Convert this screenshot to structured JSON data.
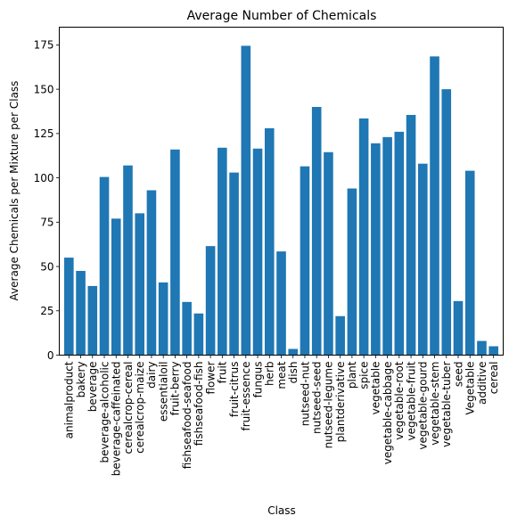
{
  "chart_data": {
    "type": "bar",
    "title": "Average Number of Chemicals",
    "xlabel": "Class",
    "ylabel": "Average Chemicals per Mixture per Class",
    "ylim": [
      0,
      185
    ],
    "yticks": [
      "0",
      "25",
      "50",
      "75",
      "100",
      "125",
      "150",
      "175"
    ],
    "grid": false,
    "bar_color": "#1f77b4",
    "categories": [
      "animalproduct",
      "bakery",
      "beverage",
      "beverage-alcoholic",
      "beverage-caffeinated",
      "cerealcrop-cereal",
      "cerealcrop-maize",
      "dairy",
      "essentialoil",
      "fruit-berry",
      "fishseafood-seafood",
      "fishseafood-fish",
      "flower",
      "fruit",
      "fruit-citrus",
      "fruit-essence",
      "fungus",
      "herb",
      "meat",
      "dish",
      "nutseed-nut",
      "nutseed-seed",
      "nutseed-legume",
      "plantderivative",
      "plant",
      "spice",
      "vegetable",
      "vegetable-cabbage",
      "vegetable-root",
      "vegetable-fruit",
      "vegetable-gourd",
      "vegetable-stem",
      "vegetable-tuber",
      "seed",
      "Vegetable",
      "additive",
      "cereal"
    ],
    "values": [
      55,
      47.5,
      39,
      100.5,
      77,
      107,
      80,
      93,
      41,
      116,
      30,
      23.5,
      61.5,
      117,
      103,
      174.5,
      116.5,
      128,
      58.5,
      3.5,
      106.5,
      140,
      114.5,
      22,
      94,
      133.5,
      119.5,
      123,
      126,
      135.5,
      108,
      168.5,
      150,
      30.5,
      104,
      8,
      5
    ]
  }
}
